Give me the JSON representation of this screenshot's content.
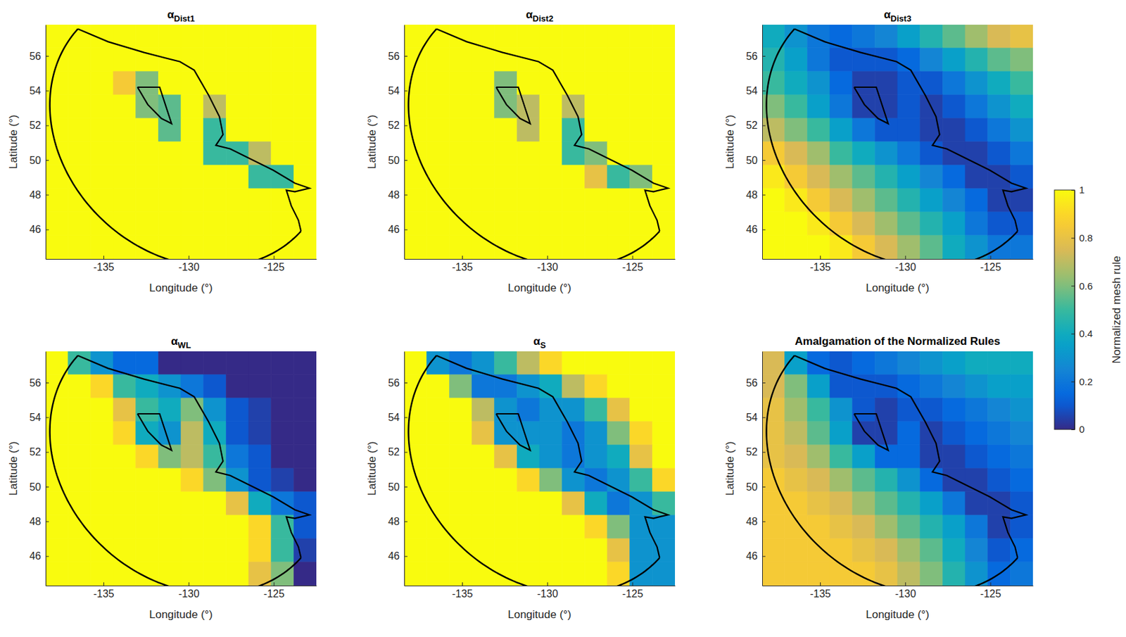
{
  "chart_data": [
    {
      "type": "heatmap",
      "title": "αDist1",
      "xlabel": "Longitude (°)",
      "ylabel": "Latitude (°)",
      "xlim": [
        -138.4,
        -122.5
      ],
      "ylim": [
        44.3,
        57.8
      ],
      "xticks": [
        -135,
        -130,
        -125
      ],
      "yticks": [
        46,
        48,
        50,
        52,
        54,
        56
      ],
      "x": [
        -137.74,
        -136.41,
        -135.09,
        -133.76,
        -132.44,
        -131.11,
        -129.79,
        -128.46,
        -127.14,
        -125.81,
        -124.49,
        -123.16
      ],
      "y": [
        57.13,
        55.78,
        54.43,
        53.08,
        51.73,
        50.38,
        49.03,
        47.68,
        46.33,
        44.98
      ],
      "z": [
        [
          1,
          1,
          1,
          1,
          1,
          1,
          1,
          1,
          1,
          1,
          1,
          1
        ],
        [
          1,
          1,
          1,
          1,
          1,
          1,
          1,
          1,
          1,
          1,
          1,
          1
        ],
        [
          1,
          1,
          1,
          0.85,
          0.6,
          1,
          1,
          1,
          1,
          1,
          1,
          1
        ],
        [
          1,
          1,
          1,
          1,
          0.6,
          0.55,
          1,
          0.7,
          1,
          1,
          1,
          1
        ],
        [
          1,
          1,
          1,
          1,
          1,
          0.55,
          1,
          0.5,
          1,
          1,
          1,
          1
        ],
        [
          1,
          1,
          1,
          1,
          1,
          1,
          1,
          0.5,
          0.5,
          0.7,
          1,
          1
        ],
        [
          1,
          1,
          1,
          1,
          1,
          1,
          1,
          1,
          1,
          0.5,
          0.5,
          1
        ],
        [
          1,
          1,
          1,
          1,
          1,
          1,
          1,
          1,
          1,
          1,
          1,
          1
        ],
        [
          1,
          1,
          1,
          1,
          1,
          1,
          1,
          1,
          1,
          1,
          1,
          1
        ],
        [
          1,
          1,
          1,
          1,
          1,
          1,
          1,
          1,
          1,
          1,
          1,
          1
        ]
      ]
    },
    {
      "type": "heatmap",
      "title": "αDist2",
      "xlabel": "Longitude (°)",
      "ylabel": "Latitude (°)",
      "xlim": [
        -138.4,
        -122.5
      ],
      "ylim": [
        44.3,
        57.8
      ],
      "xticks": [
        -135,
        -130,
        -125
      ],
      "yticks": [
        46,
        48,
        50,
        52,
        54,
        56
      ],
      "x": [
        -137.74,
        -136.41,
        -135.09,
        -133.76,
        -132.44,
        -131.11,
        -129.79,
        -128.46,
        -127.14,
        -125.81,
        -124.49,
        -123.16
      ],
      "y": [
        57.13,
        55.78,
        54.43,
        53.08,
        51.73,
        50.38,
        49.03,
        47.68,
        46.33,
        44.98
      ],
      "z": [
        [
          1,
          1,
          1,
          1,
          1,
          1,
          1,
          1,
          1,
          1,
          1,
          1
        ],
        [
          1,
          1,
          1,
          1,
          1,
          1,
          1,
          1,
          1,
          1,
          1,
          1
        ],
        [
          1,
          1,
          1,
          1,
          0.6,
          1,
          1,
          1,
          1,
          1,
          1,
          1
        ],
        [
          1,
          1,
          1,
          1,
          0.6,
          0.7,
          1,
          0.7,
          1,
          1,
          1,
          1
        ],
        [
          1,
          1,
          1,
          1,
          1,
          0.7,
          1,
          0.5,
          1,
          1,
          1,
          1
        ],
        [
          1,
          1,
          1,
          1,
          1,
          1,
          1,
          0.5,
          0.6,
          1,
          1,
          1
        ],
        [
          1,
          1,
          1,
          1,
          1,
          1,
          1,
          1,
          0.8,
          0.5,
          0.6,
          1
        ],
        [
          1,
          1,
          1,
          1,
          1,
          1,
          1,
          1,
          1,
          1,
          1,
          1
        ],
        [
          1,
          1,
          1,
          1,
          1,
          1,
          1,
          1,
          1,
          1,
          1,
          1
        ],
        [
          1,
          1,
          1,
          1,
          1,
          1,
          1,
          1,
          1,
          1,
          1,
          1
        ]
      ]
    },
    {
      "type": "heatmap",
      "title": "αDist3",
      "xlabel": "Longitude (°)",
      "ylabel": "Latitude (°)",
      "xlim": [
        -138.4,
        -122.5
      ],
      "ylim": [
        44.3,
        57.8
      ],
      "xticks": [
        -135,
        -130,
        -125
      ],
      "yticks": [
        46,
        48,
        50,
        52,
        54,
        56
      ],
      "x": [
        -137.74,
        -136.41,
        -135.09,
        -133.76,
        -132.44,
        -131.11,
        -129.79,
        -128.46,
        -127.14,
        -125.81,
        -124.49,
        -123.16
      ],
      "y": [
        57.13,
        55.78,
        54.43,
        53.08,
        51.73,
        50.38,
        49.03,
        47.68,
        46.33,
        44.98
      ],
      "z": [
        [
          0.4,
          0.3,
          0.2,
          0.15,
          0.2,
          0.25,
          0.35,
          0.45,
          0.55,
          0.65,
          0.75,
          0.8
        ],
        [
          0.45,
          0.35,
          0.2,
          0.1,
          0.1,
          0.1,
          0.15,
          0.25,
          0.35,
          0.45,
          0.55,
          0.6
        ],
        [
          0.5,
          0.4,
          0.3,
          0.15,
          0.05,
          0.05,
          0.1,
          0.1,
          0.2,
          0.3,
          0.4,
          0.5
        ],
        [
          0.6,
          0.5,
          0.35,
          0.2,
          0.05,
          0.05,
          0.1,
          0.05,
          0.1,
          0.2,
          0.3,
          0.4
        ],
        [
          0.7,
          0.6,
          0.5,
          0.35,
          0.2,
          0.1,
          0.1,
          0.05,
          0.05,
          0.1,
          0.2,
          0.3
        ],
        [
          0.85,
          0.75,
          0.65,
          0.5,
          0.4,
          0.3,
          0.2,
          0.1,
          0.05,
          0.05,
          0.1,
          0.2
        ],
        [
          0.95,
          0.85,
          0.75,
          0.65,
          0.55,
          0.45,
          0.35,
          0.25,
          0.15,
          0.05,
          0.05,
          0.1
        ],
        [
          1,
          0.95,
          0.85,
          0.75,
          0.65,
          0.55,
          0.45,
          0.35,
          0.25,
          0.15,
          0.05,
          0.05
        ],
        [
          1,
          1,
          0.95,
          0.85,
          0.75,
          0.65,
          0.55,
          0.45,
          0.35,
          0.2,
          0.1,
          0.1
        ],
        [
          1,
          1,
          1,
          0.95,
          0.85,
          0.75,
          0.65,
          0.55,
          0.4,
          0.3,
          0.2,
          0.2
        ]
      ],
      "colorbar": {
        "label": "Normalized mesh rule",
        "range": [
          0,
          1
        ],
        "ticks": [
          0,
          0.2,
          0.4,
          0.6,
          0.8,
          1
        ]
      }
    },
    {
      "type": "heatmap",
      "title": "αWL",
      "xlabel": "Longitude (°)",
      "ylabel": "Latitude (°)",
      "xlim": [
        -138.4,
        -122.5
      ],
      "ylim": [
        44.3,
        57.8
      ],
      "xticks": [
        -135,
        -130,
        -125
      ],
      "yticks": [
        46,
        48,
        50,
        52,
        54,
        56
      ],
      "x": [
        -137.74,
        -136.41,
        -135.09,
        -133.76,
        -132.44,
        -131.11,
        -129.79,
        -128.46,
        -127.14,
        -125.81,
        -124.49,
        -123.16
      ],
      "y": [
        57.13,
        55.78,
        54.43,
        53.08,
        51.73,
        50.38,
        49.03,
        47.68,
        46.33,
        44.98
      ],
      "z": [
        [
          1,
          0.5,
          0.3,
          0.15,
          0.15,
          0,
          0,
          0,
          0,
          0,
          0,
          0
        ],
        [
          1,
          1,
          0.9,
          0.5,
          0.4,
          0.3,
          0.2,
          0.1,
          0,
          0,
          0,
          0
        ],
        [
          1,
          1,
          1,
          0.8,
          0.5,
          0.4,
          0.6,
          0.3,
          0.1,
          0.05,
          0,
          0
        ],
        [
          1,
          1,
          1,
          0.9,
          0.4,
          0.3,
          0.7,
          0.4,
          0.1,
          0.05,
          0,
          0
        ],
        [
          1,
          1,
          1,
          1,
          0.9,
          0.6,
          0.7,
          0.5,
          0.2,
          0.1,
          0,
          0
        ],
        [
          1,
          1,
          1,
          1,
          1,
          1,
          0.9,
          0.6,
          0.3,
          0.1,
          0.05,
          0
        ],
        [
          1,
          1,
          1,
          1,
          1,
          1,
          1,
          1,
          0.8,
          0.4,
          0.2,
          0.1
        ],
        [
          1,
          1,
          1,
          1,
          1,
          1,
          1,
          1,
          1,
          0.9,
          0.5,
          0.1
        ],
        [
          1,
          1,
          1,
          1,
          1,
          1,
          1,
          1,
          1,
          0.9,
          0.5,
          0.05
        ],
        [
          1,
          1,
          1,
          1,
          1,
          1,
          1,
          1,
          1,
          0.8,
          0.6,
          0
        ]
      ]
    },
    {
      "type": "heatmap",
      "title": "αS",
      "xlabel": "Longitude (°)",
      "ylabel": "Latitude (°)",
      "xlim": [
        -138.4,
        -122.5
      ],
      "ylim": [
        44.3,
        57.8
      ],
      "xticks": [
        -135,
        -130,
        -125
      ],
      "yticks": [
        46,
        48,
        50,
        52,
        54,
        56
      ],
      "x": [
        -137.74,
        -136.41,
        -135.09,
        -133.76,
        -132.44,
        -131.11,
        -129.79,
        -128.46,
        -127.14,
        -125.81,
        -124.49,
        -123.16
      ],
      "y": [
        57.13,
        55.78,
        54.43,
        53.08,
        51.73,
        50.38,
        49.03,
        47.68,
        46.33,
        44.98
      ],
      "z": [
        [
          1,
          0.3,
          0.2,
          0.3,
          0.5,
          0.7,
          0.9,
          1,
          1,
          1,
          1,
          1
        ],
        [
          1,
          1,
          0.6,
          0.2,
          0.2,
          0.3,
          0.4,
          0.7,
          0.9,
          1,
          1,
          1
        ],
        [
          1,
          1,
          1,
          0.7,
          0.3,
          0.2,
          0.3,
          0.3,
          0.5,
          0.8,
          1,
          1
        ],
        [
          1,
          1,
          1,
          0.8,
          0.3,
          0.3,
          0.3,
          0.2,
          0.3,
          0.6,
          0.9,
          1
        ],
        [
          1,
          1,
          1,
          1,
          0.8,
          0.4,
          0.3,
          0.2,
          0.3,
          0.4,
          0.8,
          1
        ],
        [
          1,
          1,
          1,
          1,
          1,
          0.9,
          0.6,
          0.3,
          0.2,
          0.3,
          0.5,
          0.9
        ],
        [
          1,
          1,
          1,
          1,
          1,
          1,
          1,
          0.8,
          0.4,
          0.2,
          0.3,
          0.5
        ],
        [
          1,
          1,
          1,
          1,
          1,
          1,
          1,
          1,
          0.9,
          0.6,
          0.3,
          0.3
        ],
        [
          1,
          1,
          1,
          1,
          1,
          1,
          1,
          1,
          1,
          0.8,
          0.3,
          0.3
        ],
        [
          1,
          1,
          1,
          1,
          1,
          1,
          1,
          1,
          1,
          0.9,
          0.3,
          0.3
        ]
      ]
    },
    {
      "type": "heatmap",
      "title": "Amalgamation of the Normalized Rules",
      "xlabel": "Longitude (°)",
      "ylabel": "Latitude (°)",
      "xlim": [
        -138.4,
        -122.5
      ],
      "ylim": [
        44.3,
        57.8
      ],
      "xticks": [
        -135,
        -130,
        -125
      ],
      "yticks": [
        46,
        48,
        50,
        52,
        54,
        56
      ],
      "x": [
        -137.74,
        -136.41,
        -135.09,
        -133.76,
        -132.44,
        -131.11,
        -129.79,
        -128.46,
        -127.14,
        -125.81,
        -124.49,
        -123.16
      ],
      "y": [
        57.13,
        55.78,
        54.43,
        53.08,
        51.73,
        50.38,
        49.03,
        47.68,
        46.33,
        44.98
      ],
      "z": [
        [
          0.75,
          0.35,
          0.15,
          0.1,
          0.15,
          0.2,
          0.25,
          0.3,
          0.35,
          0.4,
          0.4,
          0.4
        ],
        [
          0.75,
          0.6,
          0.35,
          0.1,
          0.1,
          0.1,
          0.15,
          0.2,
          0.25,
          0.3,
          0.35,
          0.35
        ],
        [
          0.8,
          0.65,
          0.5,
          0.3,
          0.1,
          0.05,
          0.1,
          0.1,
          0.15,
          0.2,
          0.25,
          0.3
        ],
        [
          0.8,
          0.7,
          0.55,
          0.35,
          0.05,
          0.05,
          0.15,
          0.05,
          0.1,
          0.15,
          0.2,
          0.25
        ],
        [
          0.8,
          0.75,
          0.65,
          0.5,
          0.35,
          0.15,
          0.15,
          0.05,
          0.05,
          0.1,
          0.15,
          0.2
        ],
        [
          0.85,
          0.8,
          0.75,
          0.65,
          0.55,
          0.45,
          0.3,
          0.15,
          0.05,
          0.05,
          0.1,
          0.15
        ],
        [
          0.85,
          0.85,
          0.8,
          0.75,
          0.65,
          0.55,
          0.45,
          0.35,
          0.2,
          0.05,
          0.05,
          0.1
        ],
        [
          0.85,
          0.85,
          0.85,
          0.8,
          0.75,
          0.65,
          0.55,
          0.45,
          0.35,
          0.2,
          0.05,
          0.1
        ],
        [
          0.85,
          0.85,
          0.85,
          0.85,
          0.8,
          0.75,
          0.65,
          0.55,
          0.4,
          0.25,
          0.1,
          0.15
        ],
        [
          0.85,
          0.85,
          0.85,
          0.85,
          0.85,
          0.8,
          0.7,
          0.6,
          0.45,
          0.3,
          0.15,
          0.2
        ]
      ]
    }
  ]
}
